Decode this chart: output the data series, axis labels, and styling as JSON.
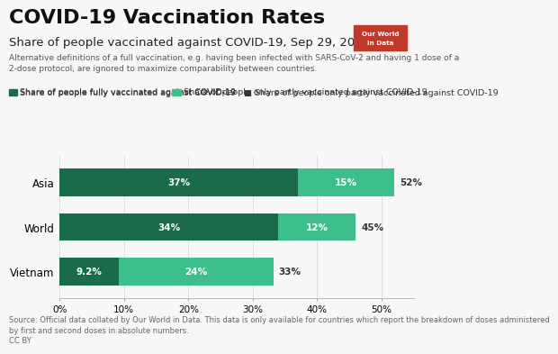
{
  "title": "COVID-19 Vaccination Rates",
  "subtitle": "Share of people vaccinated against COVID-19, Sep 29, 2021",
  "subtitle2": "Alternative definitions of a full vaccination, e.g. having been infected with SARS-CoV-2 and having 1 dose of a\n2-dose protocol, are ignored to maximize comparability between countries.",
  "source": "Source: Official data collated by Our World in Data. This data is only available for countries which report the breakdown of doses administered\nby first and second doses in absolute numbers.\nCC BY",
  "categories": [
    "Asia",
    "World",
    "Vietnam"
  ],
  "fully_vaccinated": [
    37,
    34,
    9.2
  ],
  "partly_vaccinated": [
    15,
    12,
    24
  ],
  "total_labels": [
    "52%",
    "45%",
    "33%"
  ],
  "fully_labels": [
    "37%",
    "34%",
    "9.2%"
  ],
  "partly_labels": [
    "15%",
    "12%",
    "24%"
  ],
  "color_full": "#1a6b4a",
  "color_partly": "#3dbf8c",
  "legend_full": "Share of people fully vaccinated against COVID-19",
  "legend_partly": "Share of people only partly vaccinated against COVID-19",
  "xlim": [
    0,
    55
  ],
  "xticks": [
    0,
    10,
    20,
    30,
    40,
    50
  ],
  "xtick_labels": [
    "0%",
    "10%",
    "20%",
    "30%",
    "40%",
    "50%"
  ],
  "bg_color": "#f7f7f7",
  "title_fontsize": 16,
  "subtitle_fontsize": 9.5,
  "subtitle2_fontsize": 6.5,
  "legend_fontsize": 6.8,
  "bar_label_fontsize": 7.5,
  "total_label_fontsize": 7.5,
  "ytick_fontsize": 8.5,
  "xtick_fontsize": 7.5,
  "source_fontsize": 6
}
